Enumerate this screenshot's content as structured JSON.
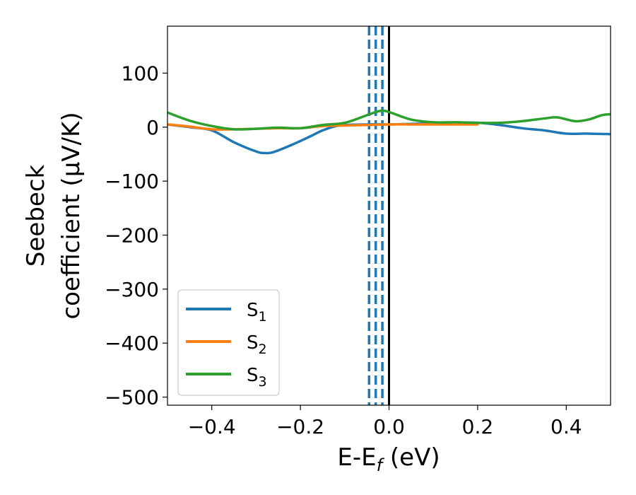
{
  "chart_data": {
    "type": "line",
    "xlabel_main": "E-E",
    "xlabel_sub": "f",
    "xlabel_unit": " (eV)",
    "ylabel_line1": "Seebeck",
    "ylabel_line2": "coefficient  (μV/K)",
    "xlim": [
      -0.5,
      0.5
    ],
    "ylim": [
      -515,
      187
    ],
    "x_ticks": [
      -0.4,
      -0.2,
      0.0,
      0.2,
      0.4
    ],
    "x_tick_labels": [
      "−0.4",
      "−0.2",
      "0.0",
      "0.2",
      "0.4"
    ],
    "y_ticks": [
      100,
      0,
      -100,
      -200,
      -300,
      -400,
      -500
    ],
    "y_tick_labels": [
      "100",
      "0",
      "−100",
      "−200",
      "−300",
      "−400",
      "−500"
    ],
    "grid": false,
    "legend_position": "lower-left",
    "vertical_lines": [
      {
        "x": -0.045,
        "style": "dashed",
        "color": "#1f77b4"
      },
      {
        "x": -0.03,
        "style": "dashed",
        "color": "#1f77b4"
      },
      {
        "x": -0.015,
        "style": "dashed",
        "color": "#1f77b4"
      },
      {
        "x": 0.0,
        "style": "solid",
        "color": "#000000"
      }
    ],
    "series": [
      {
        "name": "S",
        "sub": "1",
        "color": "#1f77b4",
        "x": [
          -0.5,
          -0.45,
          -0.4,
          -0.35,
          -0.3,
          -0.28,
          -0.26,
          -0.22,
          -0.18,
          -0.15,
          -0.12,
          -0.1,
          -0.05,
          0.0,
          0.05,
          0.1,
          0.15,
          0.2,
          0.25,
          0.3,
          0.35,
          0.4,
          0.45,
          0.5
        ],
        "y": [
          5,
          0,
          -6,
          -28,
          -45,
          -48,
          -46,
          -33,
          -18,
          -6,
          2,
          4,
          5,
          5,
          6,
          7,
          8,
          8,
          4,
          -2,
          -6,
          -12,
          -12,
          -13
        ]
      },
      {
        "name": "S",
        "sub": "2",
        "color": "#ff7f0e",
        "x": [
          -0.5,
          -0.45,
          -0.4,
          -0.35,
          -0.3,
          -0.25,
          -0.2,
          -0.15,
          -0.1,
          -0.05,
          0.0,
          0.05,
          0.1,
          0.15,
          0.2
        ],
        "y": [
          5,
          1,
          -4,
          -4,
          -3,
          -2,
          -2,
          2,
          3,
          4,
          5,
          5,
          5,
          5,
          5
        ]
      },
      {
        "name": "S",
        "sub": "3",
        "color": "#2ca02c",
        "x": [
          -0.5,
          -0.45,
          -0.4,
          -0.35,
          -0.3,
          -0.25,
          -0.2,
          -0.15,
          -0.1,
          -0.05,
          -0.02,
          0.0,
          0.05,
          0.1,
          0.15,
          0.2,
          0.25,
          0.3,
          0.35,
          0.38,
          0.42,
          0.45,
          0.48,
          0.5
        ],
        "y": [
          27,
          12,
          2,
          -4,
          -3,
          -1,
          -2,
          4,
          8,
          22,
          30,
          28,
          14,
          9,
          9,
          8,
          8,
          11,
          16,
          18,
          11,
          14,
          22,
          24
        ]
      }
    ]
  }
}
